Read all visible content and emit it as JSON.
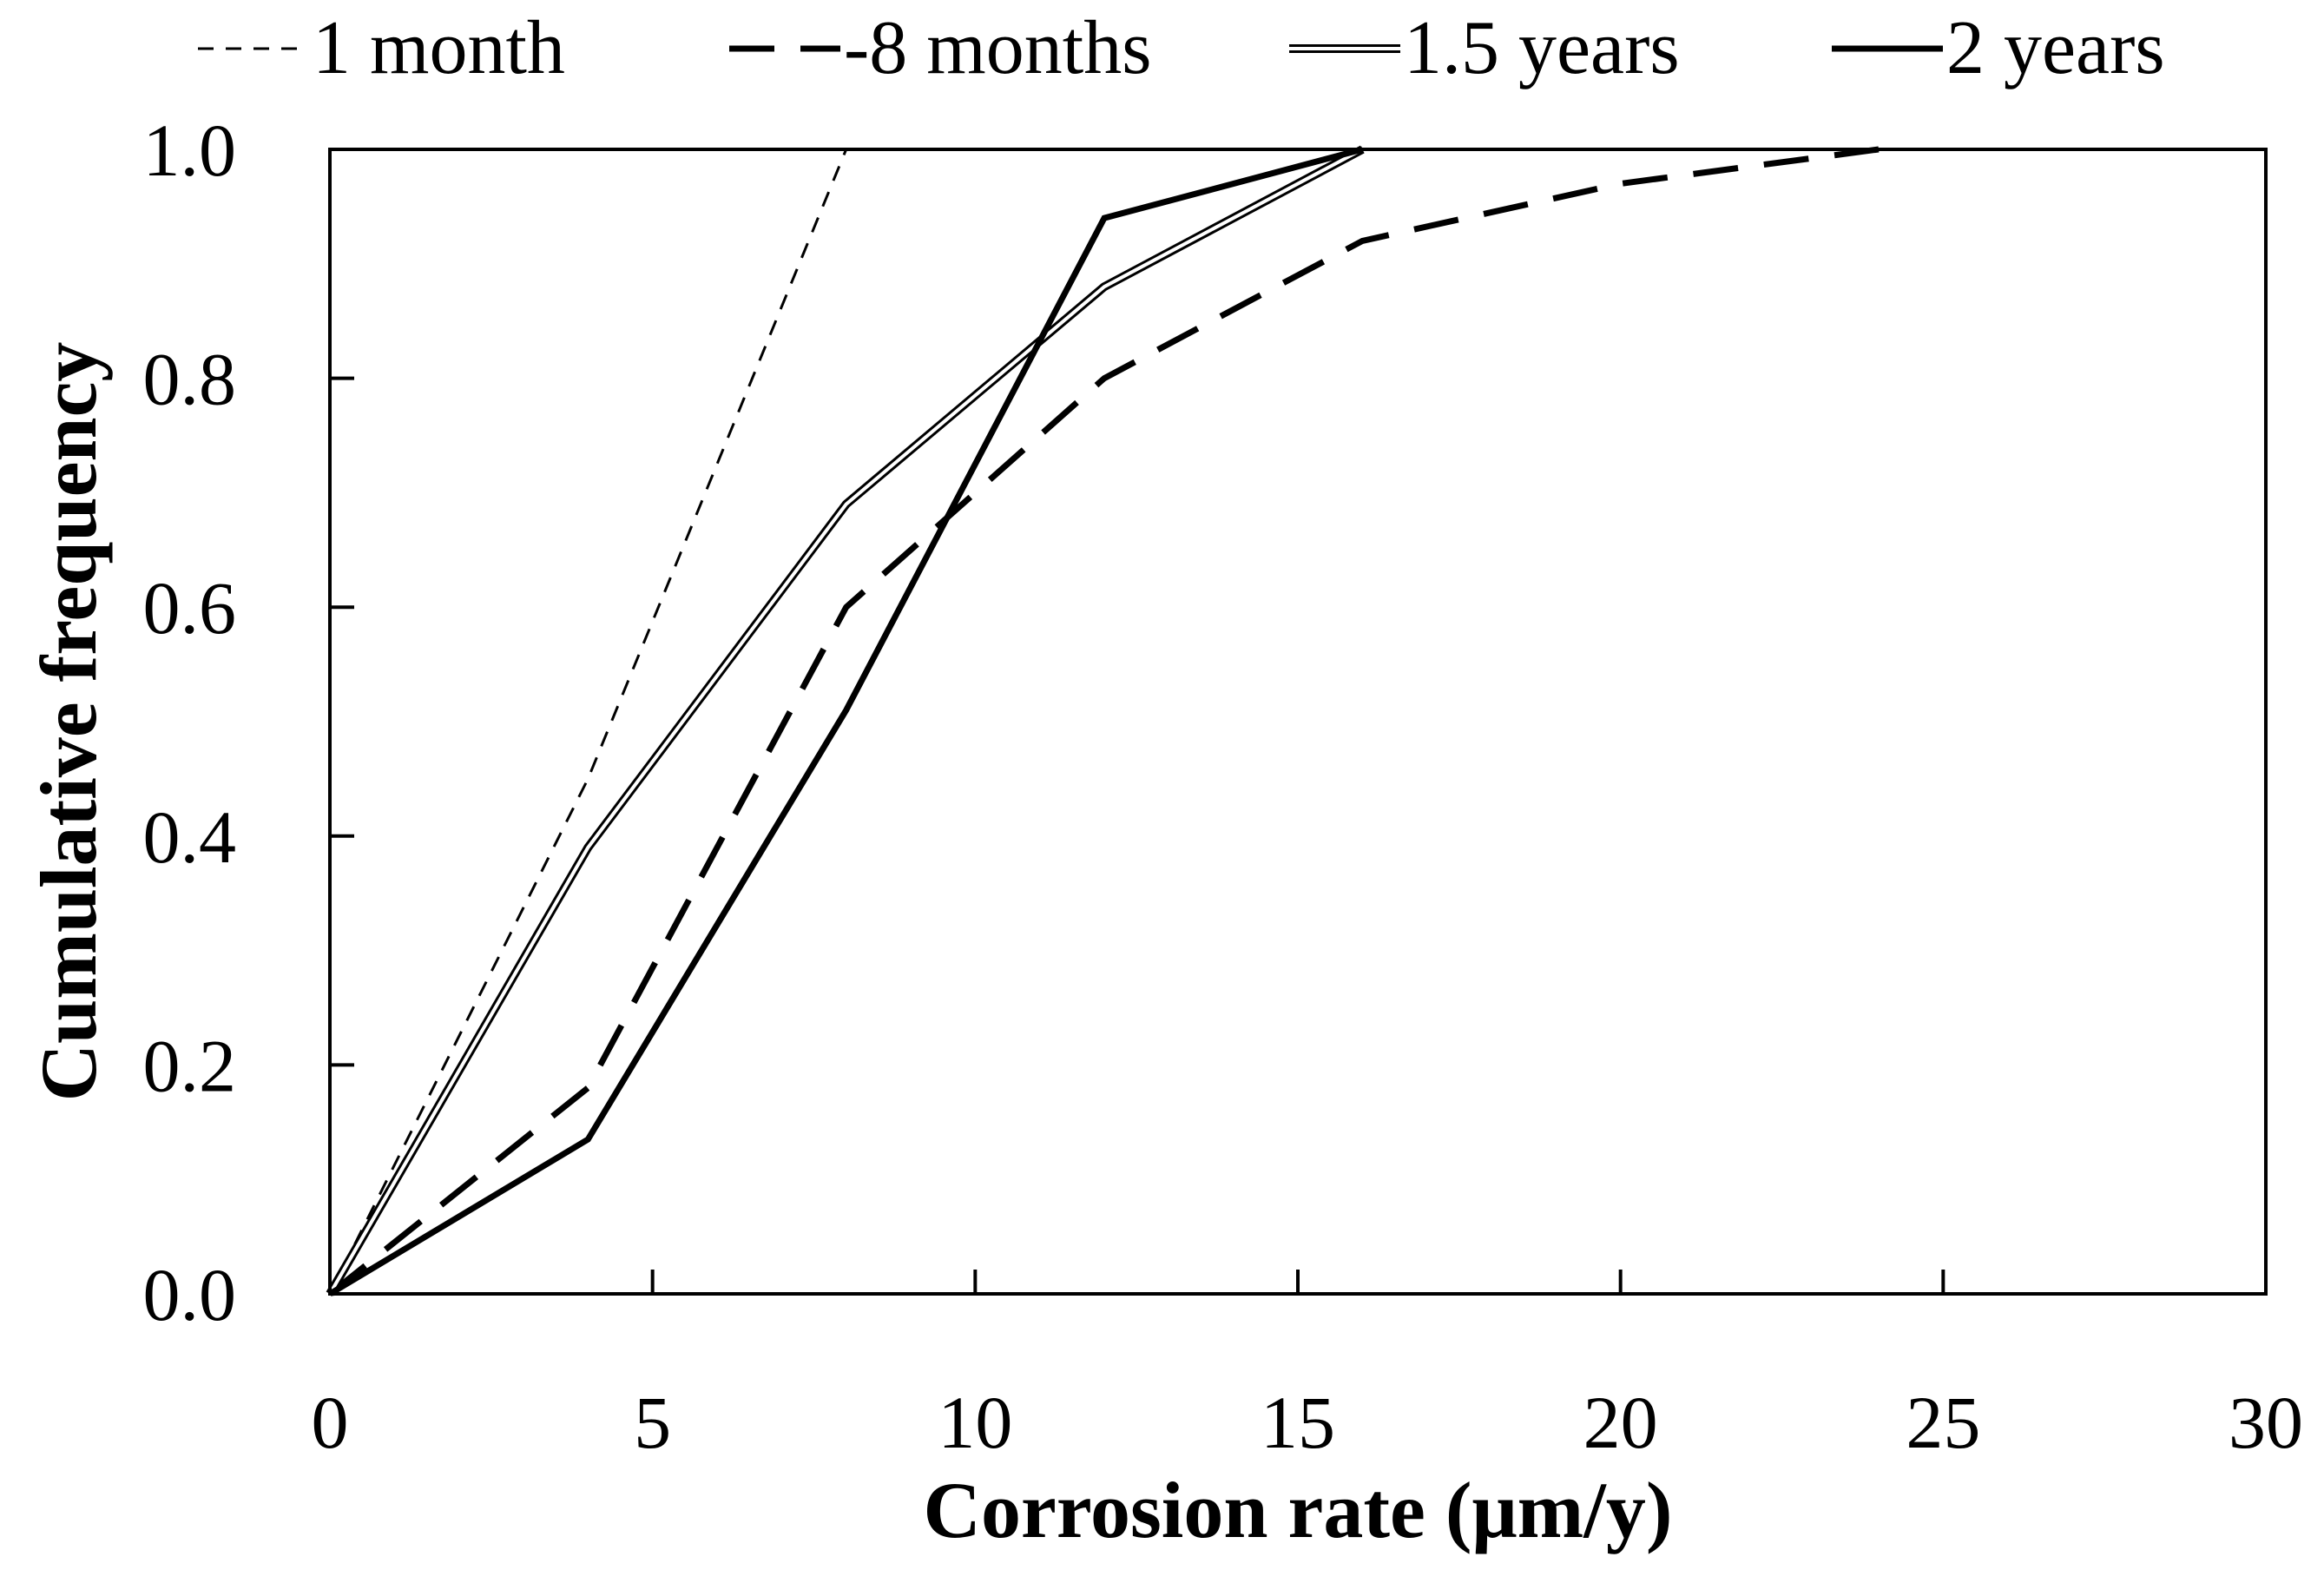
{
  "chart_data": {
    "type": "line",
    "title": "",
    "xlabel": "Corrosion rate (μm/y)",
    "ylabel": "Cumulative frequency",
    "xlim": [
      0,
      30
    ],
    "ylim": [
      0,
      1.0
    ],
    "xticks": [
      0,
      5,
      10,
      15,
      20,
      25,
      30
    ],
    "xtick_labels": [
      "0",
      "5",
      "10",
      "15",
      "20",
      "25",
      "30"
    ],
    "yticks": [
      0,
      0.2,
      0.4,
      0.6,
      0.8,
      1.0
    ],
    "ytick_labels": [
      "0.0",
      "0.2",
      "0.4",
      "0.6",
      "0.8",
      "1.0"
    ],
    "grid": false,
    "legend_position": "top",
    "series": [
      {
        "name": "1 month",
        "legend_label": "1 month",
        "style": "thin-dashed",
        "color": "#000000",
        "x": [
          0,
          4,
          8
        ],
        "y": [
          0,
          0.45,
          1.0
        ]
      },
      {
        "name": "8 months",
        "legend_label": "-8 months",
        "style": "thick-dashed",
        "color": "#000000",
        "x": [
          0,
          4,
          8,
          12,
          16,
          20,
          24
        ],
        "y": [
          0,
          0.18,
          0.6,
          0.8,
          0.92,
          0.97,
          1.0
        ]
      },
      {
        "name": "1.5 years",
        "legend_label": "1.5 years",
        "style": "double",
        "color": "#000000",
        "x": [
          0,
          4,
          8,
          12,
          16
        ],
        "y": [
          0,
          0.39,
          0.69,
          0.88,
          1.0
        ]
      },
      {
        "name": "2 years",
        "legend_label": "2 years",
        "style": "solid",
        "color": "#000000",
        "x": [
          0,
          4,
          8,
          12,
          16
        ],
        "y": [
          0,
          0.135,
          0.51,
          0.94,
          1.0
        ]
      }
    ]
  }
}
